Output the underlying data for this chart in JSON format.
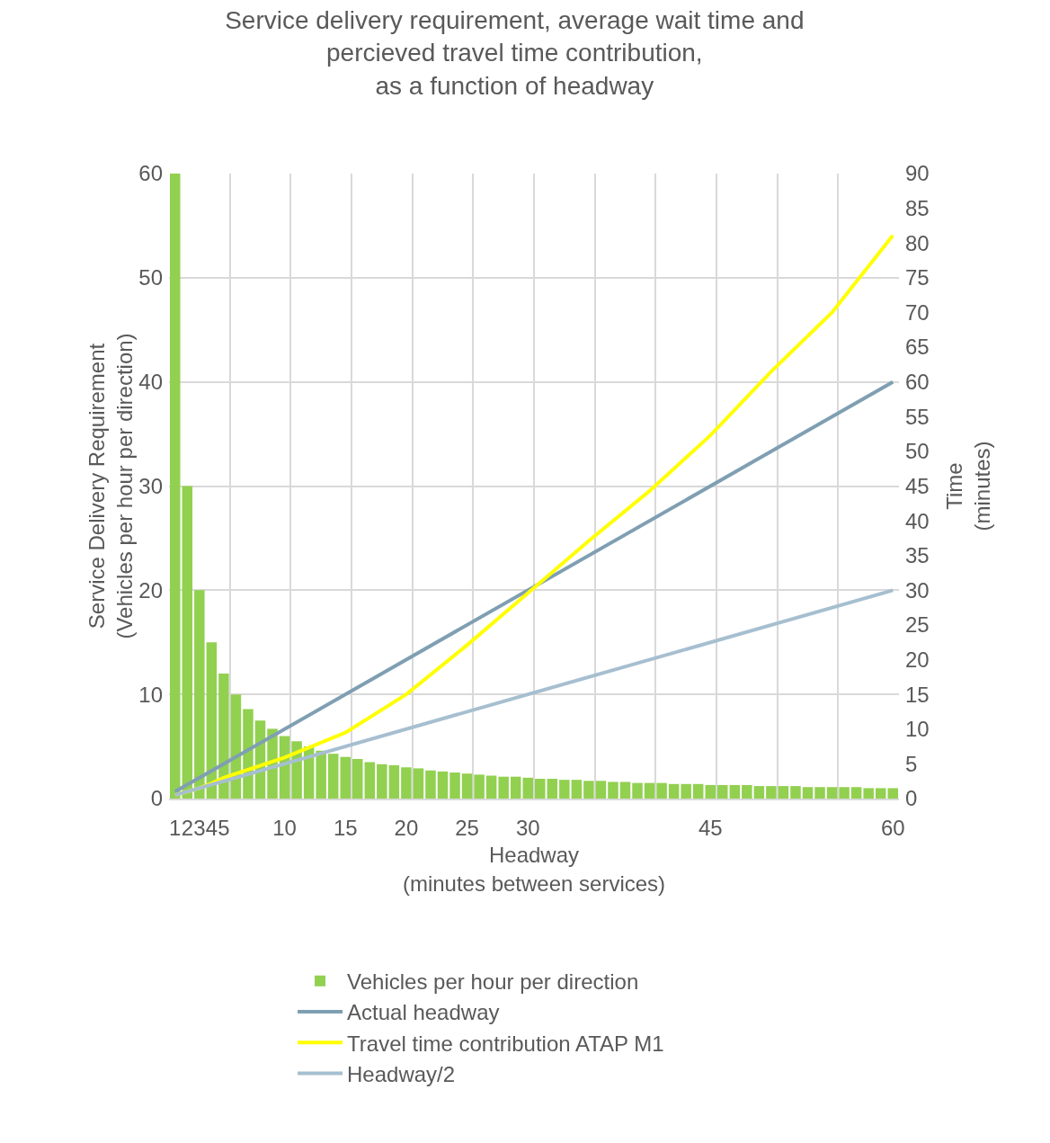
{
  "chart_data": {
    "type": "bar",
    "title": "Service delivery requirement, average wait time and\npercieved travel time contribution,\nas a function of headway",
    "xlabel": "Headway\n(minutes between services)",
    "ylabel": "Service Delivery Requirement\n(Vehicles per hour per direction)",
    "y2label": "Time\n(minutes)",
    "x": [
      1,
      2,
      3,
      4,
      5,
      6,
      7,
      8,
      9,
      10,
      11,
      12,
      13,
      14,
      15,
      16,
      17,
      18,
      19,
      20,
      21,
      22,
      23,
      24,
      25,
      26,
      27,
      28,
      29,
      30,
      31,
      32,
      33,
      34,
      35,
      36,
      37,
      38,
      39,
      40,
      41,
      42,
      43,
      44,
      45,
      46,
      47,
      48,
      49,
      50,
      51,
      52,
      53,
      54,
      55,
      56,
      57,
      58,
      59,
      60
    ],
    "series": [
      {
        "name": "Vehicles per hour per direction",
        "color": "#92d050",
        "values": [
          60,
          30,
          20,
          15,
          12,
          10,
          8.6,
          7.5,
          6.7,
          6,
          5.5,
          5,
          4.6,
          4.3,
          4,
          3.8,
          3.5,
          3.3,
          3.2,
          3,
          2.9,
          2.7,
          2.6,
          2.5,
          2.4,
          2.3,
          2.2,
          2.1,
          2.1,
          2,
          1.9,
          1.9,
          1.8,
          1.8,
          1.7,
          1.7,
          1.6,
          1.6,
          1.5,
          1.5,
          1.5,
          1.4,
          1.4,
          1.4,
          1.3,
          1.3,
          1.3,
          1.3,
          1.2,
          1.2,
          1.2,
          1.2,
          1.1,
          1.1,
          1.1,
          1.1,
          1.1,
          1,
          1,
          1
        ]
      },
      {
        "name": "Actual headway",
        "type": "line",
        "axis": "y2",
        "color": "#7f9fb2",
        "x": [
          1,
          60
        ],
        "values": [
          1,
          60
        ]
      },
      {
        "name": "Travel time contribution ATAP M1",
        "type": "line",
        "axis": "y2",
        "color": "#ffff00",
        "x": [
          1,
          2,
          3,
          4,
          5,
          10,
          15,
          20,
          25,
          30,
          35,
          40,
          45,
          50,
          55,
          60
        ],
        "values": [
          0.5,
          1,
          1.5,
          2.2,
          3,
          5.9,
          9.5,
          15,
          22.1,
          29.6,
          37.1,
          44.3,
          52.3,
          61.5,
          70,
          81.1
        ]
      },
      {
        "name": "Headway/2",
        "type": "line",
        "axis": "y2",
        "color": "#a6bfd0",
        "x": [
          1,
          60
        ],
        "values": [
          0.5,
          30
        ]
      }
    ],
    "xlim": [
      0.5,
      60.5
    ],
    "xticks": [
      1,
      2,
      3,
      4,
      5,
      10,
      15,
      20,
      25,
      30,
      45,
      60,
      {
        "value": 5.5,
        "label": null
      },
      {
        "value": 10.5,
        "label": null
      },
      {
        "value": 15.5,
        "label": null
      },
      {
        "value": 20.5,
        "label": null
      },
      {
        "value": 25.5,
        "label": null
      },
      {
        "value": 30.5,
        "label": null
      },
      {
        "value": 35.5,
        "label": null
      },
      {
        "value": 40.5,
        "label": null
      },
      {
        "value": 45.5,
        "label": null
      },
      {
        "value": 50.5,
        "label": null
      },
      {
        "value": 55.5,
        "label": null
      }
    ],
    "ylim": [
      0,
      60
    ],
    "yticks": [
      0,
      10,
      20,
      30,
      40,
      50,
      60
    ],
    "y2lim": [
      0,
      90
    ],
    "y2ticks": [
      0,
      5,
      10,
      15,
      20,
      25,
      30,
      35,
      40,
      45,
      50,
      55,
      60,
      65,
      70,
      75,
      80,
      85,
      90
    ],
    "grid": true,
    "legend": "bottom",
    "marker": "none",
    "line_style": "solid"
  }
}
